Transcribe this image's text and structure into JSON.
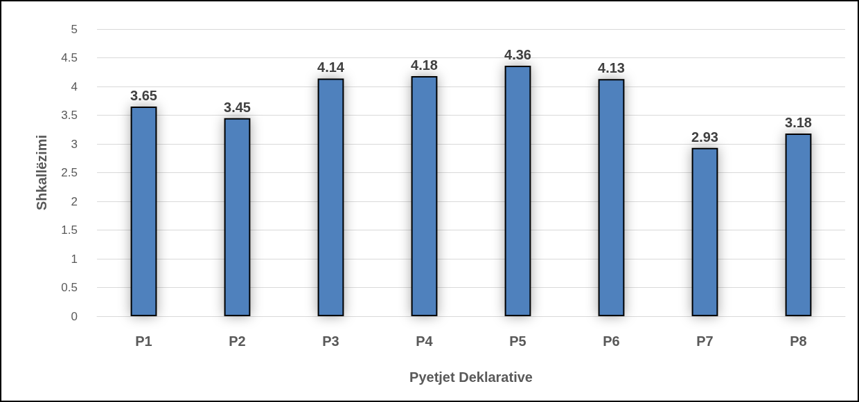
{
  "chart_data": {
    "type": "bar",
    "xlabel": "Pyetjet Deklarative",
    "ylabel": "Shkallëzimi",
    "categories": [
      "P1",
      "P2",
      "P3",
      "P4",
      "P5",
      "P6",
      "P7",
      "P8"
    ],
    "values": [
      3.65,
      3.45,
      4.14,
      4.18,
      4.36,
      4.13,
      2.93,
      3.18
    ],
    "color": "#4f81bd",
    "ylim": [
      0,
      5
    ],
    "yticks": [
      0,
      0.5,
      1,
      1.5,
      2,
      2.5,
      3,
      3.5,
      4,
      4.5,
      5
    ],
    "grid": "y",
    "data_labels": true
  }
}
